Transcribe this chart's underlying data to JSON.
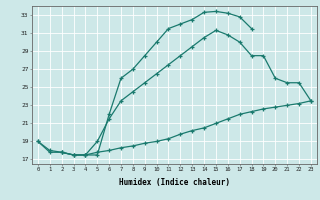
{
  "xlabel": "Humidex (Indice chaleur)",
  "bg_color": "#cde8e8",
  "grid_color": "#ffffff",
  "line_color": "#1a7a6e",
  "xlim": [
    -0.5,
    23.5
  ],
  "ylim": [
    16.5,
    34.0
  ],
  "xticks": [
    0,
    1,
    2,
    3,
    4,
    5,
    6,
    7,
    8,
    9,
    10,
    11,
    12,
    13,
    14,
    15,
    16,
    17,
    18,
    19,
    20,
    21,
    22,
    23
  ],
  "yticks": [
    17,
    19,
    21,
    23,
    25,
    27,
    29,
    31,
    33
  ],
  "curve1_x": [
    0,
    1,
    2,
    3,
    4,
    5,
    6,
    7,
    8,
    9,
    10,
    11,
    12,
    13,
    14,
    15,
    16,
    17,
    18
  ],
  "curve1_y": [
    19.0,
    18.0,
    17.8,
    17.5,
    17.5,
    17.5,
    22.0,
    26.0,
    27.0,
    28.5,
    30.0,
    31.5,
    32.0,
    32.5,
    33.3,
    33.4,
    33.2,
    32.8,
    31.5
  ],
  "curve2_x": [
    2,
    3,
    4,
    5,
    6,
    7,
    8,
    9,
    10,
    11,
    12,
    13,
    14,
    15,
    16,
    17,
    18,
    19,
    20,
    21,
    22,
    23
  ],
  "curve2_y": [
    17.8,
    17.5,
    17.5,
    19.0,
    21.5,
    23.5,
    24.5,
    25.5,
    26.5,
    27.5,
    28.5,
    29.5,
    30.5,
    31.3,
    30.8,
    30.0,
    28.5,
    28.5,
    26.0,
    25.5,
    25.5,
    23.5
  ],
  "curve3_x": [
    0,
    1,
    2,
    3,
    4,
    5,
    6,
    7,
    8,
    9,
    10,
    11,
    12,
    13,
    14,
    15,
    16,
    17,
    18,
    19,
    20,
    21,
    22,
    23
  ],
  "curve3_y": [
    19.0,
    17.8,
    17.8,
    17.5,
    17.5,
    17.8,
    18.0,
    18.3,
    18.5,
    18.8,
    19.0,
    19.3,
    19.8,
    20.2,
    20.5,
    21.0,
    21.5,
    22.0,
    22.3,
    22.6,
    22.8,
    23.0,
    23.2,
    23.5
  ]
}
